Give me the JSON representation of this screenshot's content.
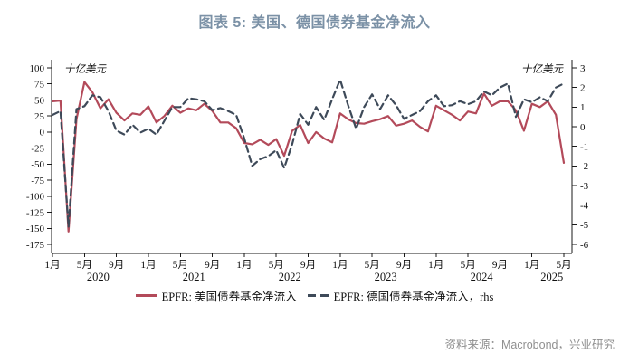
{
  "title": "图表 5: 美国、德国债券基金净流入",
  "source": "资料来源：Macrobond，兴业研究",
  "colors": {
    "title": "#7b91a6",
    "us_line": "#b34a5a",
    "de_line": "#3e4a59",
    "axis": "#1a1a1a",
    "tick_text": "#111111",
    "source_text": "#8f8f8f"
  },
  "chart_data": {
    "type": "line",
    "title": "图表 5: 美国、德国债券基金净流入",
    "x_start": "2020-01",
    "x_end": "2025-05",
    "x_frequency": "monthly",
    "x_tick_labels": [
      "1月",
      "5月",
      "9月",
      "1月",
      "5月",
      "9月",
      "1月",
      "5月",
      "9月",
      "1月",
      "5月",
      "9月",
      "1月",
      "5月",
      "9月",
      "1月",
      "5月"
    ],
    "x_tick_month_indices": [
      0,
      4,
      8,
      12,
      16,
      20,
      24,
      28,
      32,
      36,
      40,
      44,
      48,
      52,
      56,
      60,
      64
    ],
    "year_labels": [
      "2020",
      "2021",
      "2022",
      "2023",
      "2024",
      "2025"
    ],
    "left_axis": {
      "unit_label": "十亿美元",
      "max": 100,
      "min": -175,
      "tick_step": 25,
      "ticks": [
        100,
        75,
        50,
        25,
        0,
        -25,
        -50,
        -75,
        -100,
        -125,
        -150,
        -175
      ]
    },
    "right_axis": {
      "unit_label": "十亿美元",
      "max": 3,
      "min": -6,
      "tick_step": 1,
      "ticks": [
        3,
        2,
        1,
        0,
        -1,
        -2,
        -3,
        -4,
        -5,
        -6
      ]
    },
    "grid": false,
    "legend_position": "bottom-center",
    "series": [
      {
        "name": "EPFR: 美国债券基金净流入",
        "axis": "left",
        "line_style": "solid",
        "color": "#b34a5a",
        "values": [
          48,
          49,
          -155,
          20,
          78,
          62,
          37,
          51,
          30,
          18,
          29,
          27,
          40,
          15,
          25,
          41,
          30,
          37,
          34,
          44,
          33,
          15,
          15,
          6,
          -17,
          -19,
          -12,
          -20,
          -11,
          -37,
          2,
          11,
          -17,
          0,
          -10,
          -16,
          29,
          20,
          14,
          13,
          17,
          20,
          25,
          10,
          13,
          18,
          8,
          1,
          41,
          34,
          27,
          18,
          32,
          29,
          60,
          41,
          48,
          48,
          34,
          2,
          44,
          39,
          48,
          27,
          -48
        ]
      },
      {
        "name": "EPFR: 德国债券基金净流入，rhs",
        "axis": "right",
        "line_style": "dashed",
        "color": "#3e4a59",
        "values": [
          0.6,
          0.8,
          -5.1,
          0.9,
          1.05,
          1.6,
          1.5,
          0.8,
          -0.2,
          -0.4,
          0.1,
          -0.3,
          -0.1,
          -0.4,
          0.3,
          1.0,
          1.0,
          1.45,
          1.4,
          1.3,
          0.85,
          0.95,
          0.8,
          0.6,
          -0.6,
          -2.0,
          -1.65,
          -1.5,
          -1.2,
          -2.1,
          -0.9,
          0.65,
          0.1,
          1.0,
          0.35,
          1.4,
          2.4,
          1.1,
          -0.1,
          1.0,
          1.65,
          0.9,
          1.6,
          1.1,
          0.4,
          0.6,
          0.8,
          1.3,
          1.6,
          1.05,
          1.1,
          1.3,
          1.15,
          1.3,
          1.8,
          1.6,
          2.0,
          2.2,
          0.5,
          1.4,
          1.25,
          1.5,
          1.3,
          2.0,
          2.2
        ]
      }
    ]
  }
}
